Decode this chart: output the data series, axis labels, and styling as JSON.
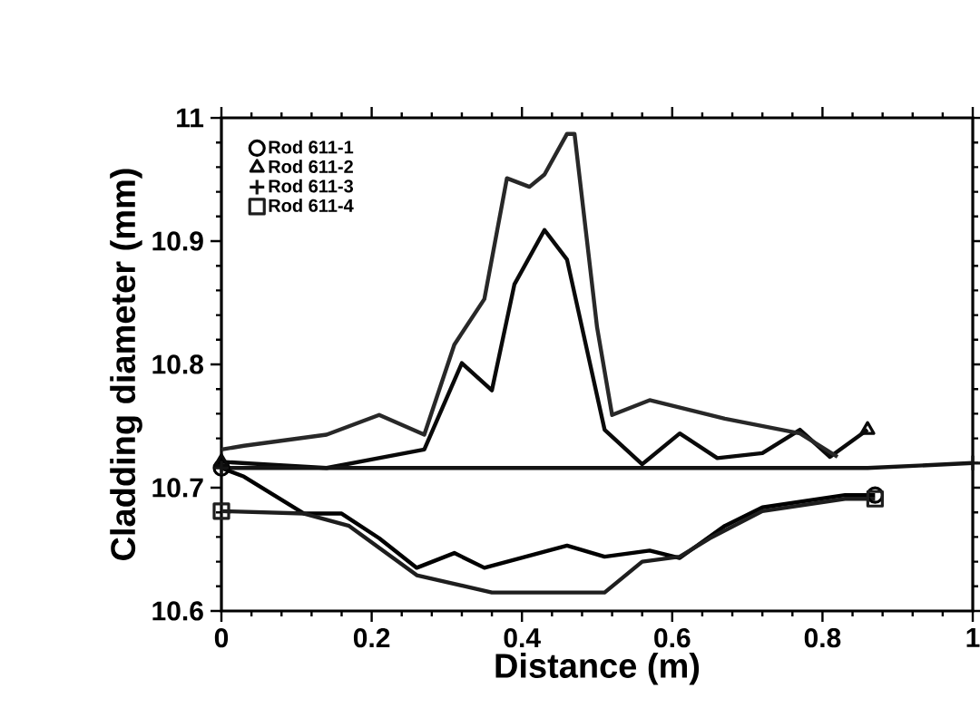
{
  "chart_data": {
    "type": "line",
    "xlabel": "Distance (m)",
    "ylabel": "Cladding diameter (mm)",
    "xlim": [
      0,
      1
    ],
    "xticks": [
      0,
      0.2,
      0.4,
      0.6,
      0.8,
      1
    ],
    "ylim": [
      10.6,
      11
    ],
    "yticks": [
      10.6,
      10.7,
      10.8,
      10.9,
      11
    ],
    "legend": "top left",
    "grid": false,
    "line_style": "solid",
    "series": [
      {
        "color": "#000000",
        "x": [
          0,
          0.03,
          0.11,
          0.16,
          0.21,
          0.26,
          0.31,
          0.35,
          0.46,
          0.51,
          0.57,
          0.61,
          0.67,
          0.72,
          0.83,
          0.87
        ],
        "values": [
          10.716,
          10.709,
          10.679,
          10.679,
          10.659,
          10.635,
          10.647,
          10.635,
          10.653,
          10.644,
          10.649,
          10.643,
          10.669,
          10.684,
          10.694,
          10.694
        ]
      },
      {
        "color": "#0a0a0a",
        "x": [
          0,
          0.14,
          0.27,
          0.32,
          0.36,
          0.39,
          0.43,
          0.46,
          0.51,
          0.56,
          0.61,
          0.66,
          0.72,
          0.77,
          0.81,
          0.86
        ],
        "values": [
          10.721,
          10.716,
          10.731,
          10.801,
          10.779,
          10.865,
          10.909,
          10.885,
          10.747,
          10.719,
          10.744,
          10.724,
          10.728,
          10.747,
          10.725,
          10.747
        ]
      },
      {
        "color": "#141414",
        "x": [
          0,
          0.86,
          1
        ],
        "values": [
          10.716,
          10.716,
          10.72
        ]
      },
      {
        "color": "#1e1e1e",
        "x": [
          0,
          0.11,
          0.17,
          0.26,
          0.36,
          0.51,
          0.56,
          0.61,
          0.65,
          0.72,
          0.83,
          0.87
        ],
        "values": [
          10.681,
          10.679,
          10.669,
          10.629,
          10.615,
          10.615,
          10.64,
          10.644,
          10.659,
          10.681,
          10.691,
          10.691
        ]
      },
      {
        "color": "#282828",
        "x": [
          0,
          0.03,
          0.14,
          0.21,
          0.27,
          0.31,
          0.35,
          0.38,
          0.41,
          0.43,
          0.46,
          0.47,
          0.5,
          0.52,
          0.57,
          0.67,
          0.77,
          0.82
        ],
        "values": [
          10.731,
          10.734,
          10.743,
          10.759,
          10.743,
          10.816,
          10.853,
          10.951,
          10.944,
          10.954,
          10.987,
          10.987,
          10.83,
          10.759,
          10.771,
          10.756,
          10.744,
          10.725
        ]
      },
      {
        "name": "Rod 611-1",
        "type": "scatter",
        "color": "#000000",
        "marker": "circle",
        "x": [
          0,
          0.87
        ],
        "values": [
          10.716,
          10.694
        ]
      },
      {
        "name": "Rod 611-2",
        "type": "scatter",
        "color": "#0a0a0a",
        "marker": "triangle",
        "x": [
          0,
          0.86
        ],
        "values": [
          10.721,
          10.747
        ]
      },
      {
        "name": "Rod 611-3",
        "type": "scatter",
        "color": "#141414",
        "marker": "cross",
        "x": [
          0,
          1
        ],
        "values": [
          10.716,
          10.72
        ]
      },
      {
        "name": "Rod 611-4",
        "type": "scatter",
        "color": "#1e1e1e",
        "marker": "square",
        "x": [
          0,
          0.87
        ],
        "values": [
          10.681,
          10.691
        ]
      }
    ]
  }
}
